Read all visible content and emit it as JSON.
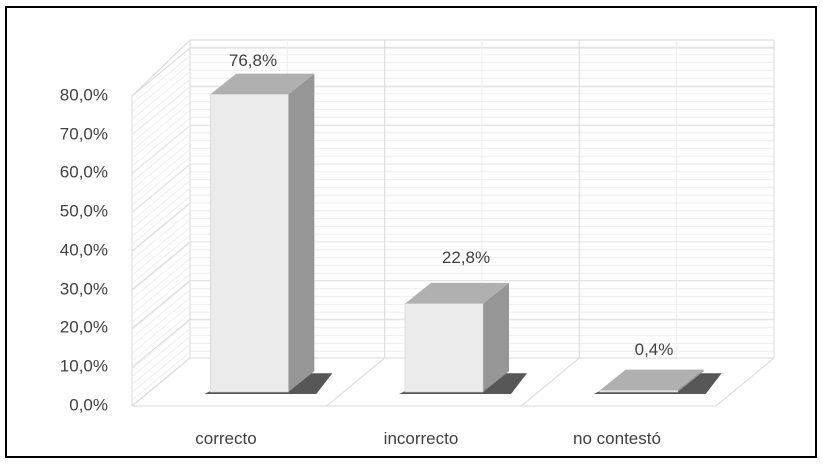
{
  "chart_data": {
    "type": "bar",
    "style": "3d-column",
    "categories": [
      "correcto",
      "incorrecto",
      "no contestó"
    ],
    "values": [
      76.8,
      22.8,
      0.4
    ],
    "data_labels": [
      "76,8%",
      "22,8%",
      "0,4%"
    ],
    "y_ticks": [
      "0,0%",
      "10,0%",
      "20,0%",
      "30,0%",
      "40,0%",
      "50,0%",
      "60,0%",
      "70,0%",
      "80,0%"
    ],
    "ylim": [
      0,
      80
    ],
    "grid": true,
    "legend": "none",
    "colors": {
      "bar_front": "#ebebeb",
      "bar_top": "#b0b0b0",
      "bar_side": "#969696",
      "bar_shadow": "#3a3a3a",
      "grid": "#d9d9d9",
      "frame": "#000000"
    }
  }
}
